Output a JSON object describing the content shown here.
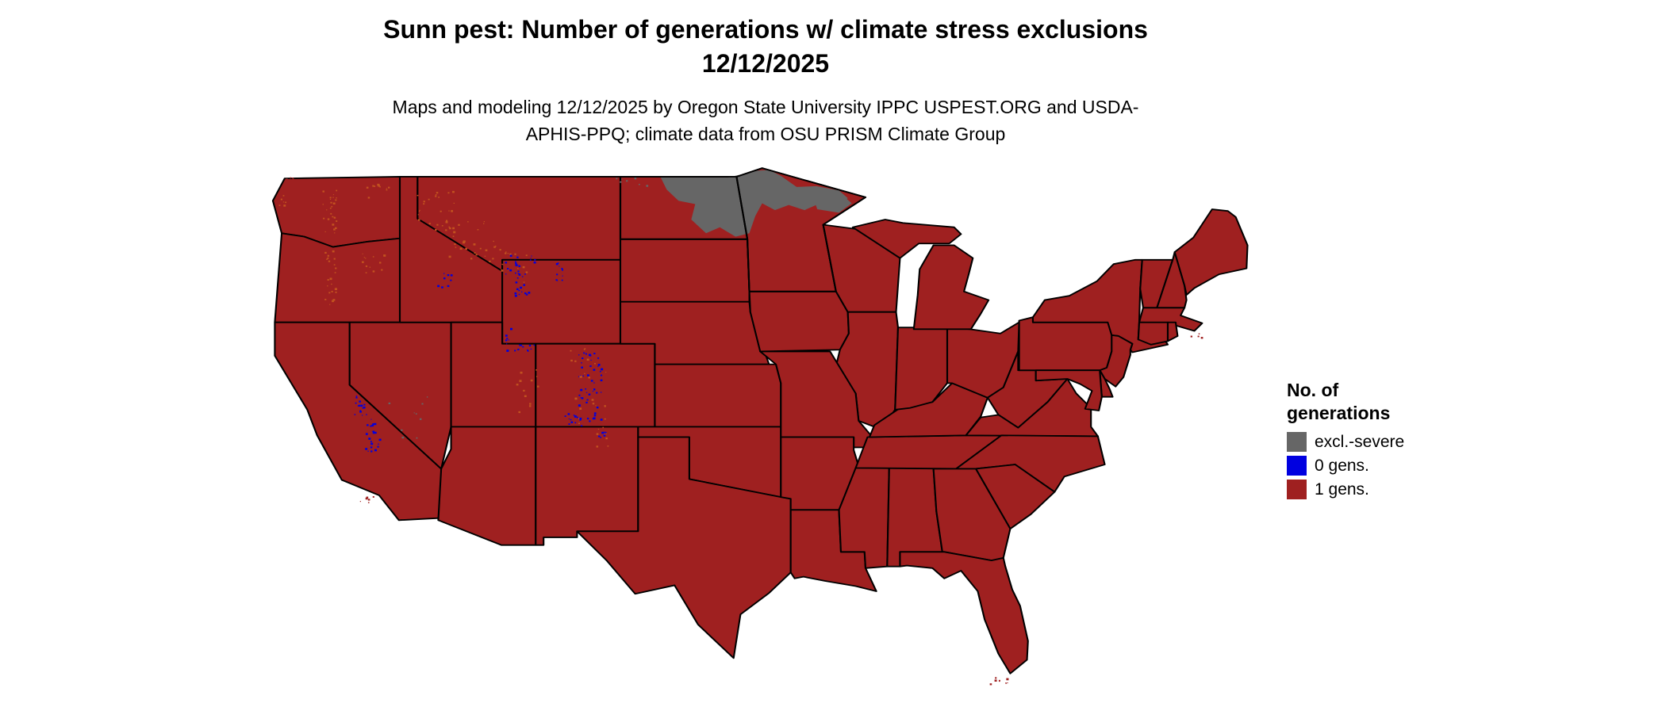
{
  "figure": {
    "title_line1": "Sunn pest: Number of generations w/ climate stress exclusions",
    "title_line2": "12/12/2025",
    "subtitle": "Maps and modeling 12/12/2025 by Oregon State University IPPC USPEST.ORG and USDA-APHIS-PPQ; climate data from OSU PRISM Climate Group"
  },
  "legend": {
    "title_line1": "No. of",
    "title_line2": "generations",
    "items": [
      {
        "label": "excl.-severe",
        "color": "#666666"
      },
      {
        "label": "0 gens.",
        "color": "#0000e0"
      },
      {
        "label": "1 gens.",
        "color": "#9f2020"
      }
    ]
  },
  "map": {
    "region": "Contiguous United States",
    "base_fill": "#9f2020",
    "state_border_color": "#000000",
    "background_color": "#ffffff",
    "minor_speckle_color": "#c2521f",
    "overlays": {
      "excl_severe_area": "eastern North Dakota and northern Minnesota",
      "zero_generations_areas": "high-elevation Sierra Nevada and Rocky Mountain areas (CA, ID, MT, WY, UT, CO, NM)"
    }
  }
}
